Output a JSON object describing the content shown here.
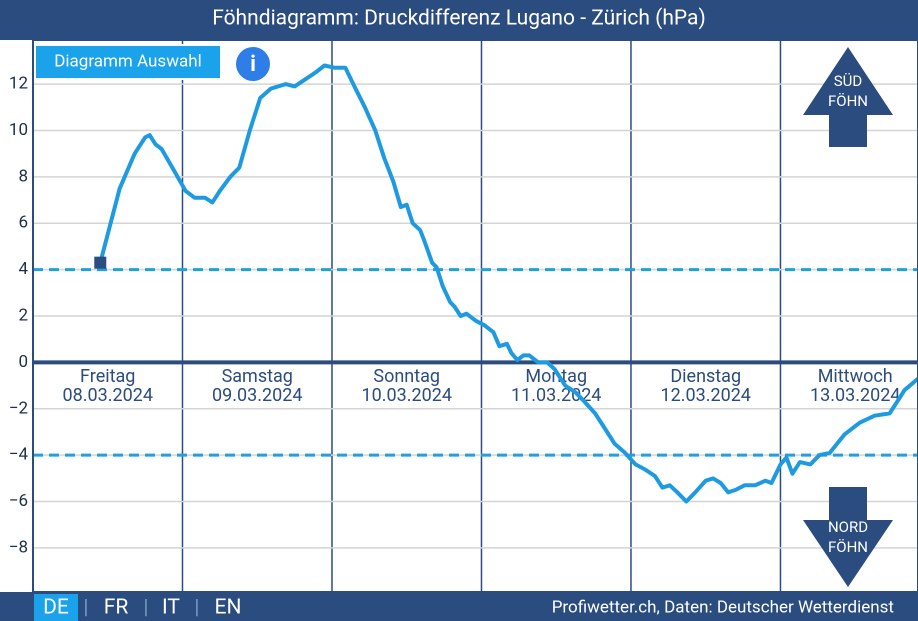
{
  "header": {
    "title": "Föhndiagramm: Druckdifferenz Lugano - Zürich (hPa)"
  },
  "controls": {
    "menu": "Diagramm Auswahl",
    "info": "i"
  },
  "chart_data": {
    "type": "line",
    "categories": [
      "Freitag",
      "Samstag",
      "Sonntag",
      "Montag",
      "Dienstag",
      "Mittwoch"
    ],
    "dates": [
      "08.03.2024",
      "09.03.2024",
      "10.03.2024",
      "11.03.2024",
      "12.03.2024",
      "13.03.2024"
    ],
    "xlim": [
      0,
      5.92
    ],
    "ylim": [
      -9.9,
      13.9
    ],
    "yticks": [
      {
        "value": -8,
        "label": "−8"
      },
      {
        "value": -6,
        "label": "−6"
      },
      {
        "value": -4,
        "label": "−4"
      },
      {
        "value": -2,
        "label": "−2"
      },
      0,
      2,
      4,
      6,
      8,
      10,
      12
    ],
    "grid": true,
    "thresholds": [
      4,
      -4
    ],
    "threshold_color": "#1fa0e3",
    "series": [
      {
        "color": "#1e9be0",
        "x": [
          0.45,
          0.58,
          0.68,
          0.75,
          0.78,
          0.82,
          0.86,
          0.95,
          1.02,
          1.08,
          1.15,
          1.2,
          1.25,
          1.32,
          1.38,
          1.45,
          1.52,
          1.59,
          1.69,
          1.75,
          1.82,
          1.89,
          1.95,
          2.02,
          2.09,
          2.15,
          2.22,
          2.29,
          2.35,
          2.41,
          2.46,
          2.5,
          2.54,
          2.59,
          2.62,
          2.67,
          2.7,
          2.74,
          2.79,
          2.82,
          2.86,
          2.9,
          2.96,
          3.02,
          3.08,
          3.12,
          3.17,
          3.2,
          3.24,
          3.28,
          3.32,
          3.38,
          3.44,
          3.49,
          3.56,
          3.63,
          3.69,
          3.76,
          3.83,
          3.89,
          3.96,
          4.03,
          4.09,
          4.16,
          4.21,
          4.26,
          4.31,
          4.37,
          4.43,
          4.5,
          4.55,
          4.6,
          4.65,
          4.7,
          4.76,
          4.83,
          4.9,
          4.94,
          5.0,
          5.04,
          5.08,
          5.13,
          5.2,
          5.26,
          5.33,
          5.43,
          5.53,
          5.63,
          5.73,
          5.79,
          5.83,
          5.92
        ],
        "values": [
          4.3,
          7.5,
          9.0,
          9.7,
          9.8,
          9.4,
          9.2,
          8.2,
          7.4,
          7.1,
          7.1,
          6.9,
          7.4,
          8.0,
          8.4,
          10.0,
          11.4,
          11.8,
          12.0,
          11.9,
          12.2,
          12.5,
          12.8,
          12.7,
          12.7,
          11.9,
          11.0,
          10.0,
          8.8,
          7.8,
          6.7,
          6.8,
          6.0,
          5.7,
          5.2,
          4.3,
          4.1,
          3.3,
          2.6,
          2.4,
          2.0,
          2.1,
          1.8,
          1.6,
          1.3,
          0.7,
          0.8,
          0.4,
          0.1,
          0.3,
          0.3,
          0.0,
          0.0,
          -0.3,
          -1.0,
          -1.3,
          -1.7,
          -2.2,
          -2.9,
          -3.5,
          -3.9,
          -4.4,
          -4.6,
          -4.9,
          -5.4,
          -5.3,
          -5.6,
          -6.0,
          -5.6,
          -5.1,
          -5.0,
          -5.2,
          -5.6,
          -5.5,
          -5.3,
          -5.3,
          -5.1,
          -5.2,
          -4.4,
          -4.1,
          -4.8,
          -4.3,
          -4.4,
          -4.0,
          -3.9,
          -3.1,
          -2.6,
          -2.3,
          -2.2,
          -1.6,
          -1.2,
          -0.7
        ]
      }
    ]
  },
  "labels": {
    "south": [
      "SÜD",
      "FÖHN"
    ],
    "north": [
      "NORD",
      "FÖHN"
    ]
  },
  "footer": {
    "languages": [
      "DE",
      "FR",
      "IT",
      "EN"
    ],
    "source": "Profiwetter.ch, Daten: Deutscher Wetterdienst"
  }
}
